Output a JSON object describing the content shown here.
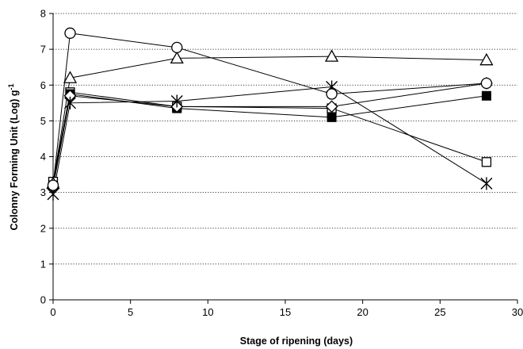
{
  "chart_data": {
    "type": "line",
    "title": "",
    "xlabel": "Stage of ripening  (days)",
    "ylabel_main": "Colonny Forming Unit (Log) g",
    "ylabel_sup": "-1",
    "xlim": [
      0,
      30
    ],
    "ylim": [
      0,
      8
    ],
    "xticks": [
      0,
      5,
      10,
      15,
      20,
      25,
      30
    ],
    "yticks": [
      0,
      1,
      2,
      3,
      4,
      5,
      6,
      7,
      8
    ],
    "grid": "horizontal dotted",
    "legend": "none",
    "series": [
      {
        "marker": "open-circle",
        "points": [
          [
            0,
            3.2
          ],
          [
            1.1,
            7.45
          ],
          [
            8,
            7.05
          ],
          [
            18,
            5.75
          ],
          [
            28,
            6.05
          ]
        ]
      },
      {
        "marker": "open-triangle",
        "points": [
          [
            0,
            3.25
          ],
          [
            1.1,
            6.2
          ],
          [
            8,
            6.75
          ],
          [
            18,
            6.8
          ],
          [
            28,
            6.7
          ]
        ]
      },
      {
        "marker": "asterisk",
        "points": [
          [
            0,
            2.95
          ],
          [
            1.1,
            5.5
          ],
          [
            8,
            5.55
          ],
          [
            18,
            5.95
          ],
          [
            28,
            3.25
          ]
        ]
      },
      {
        "marker": "open-square",
        "points": [
          [
            0,
            3.3
          ],
          [
            1.1,
            5.8
          ],
          [
            8,
            5.4
          ],
          [
            18,
            5.35
          ],
          [
            28,
            3.85
          ]
        ]
      },
      {
        "marker": "filled-square",
        "points": [
          [
            0,
            3.2
          ],
          [
            1.1,
            5.75
          ],
          [
            8,
            5.35
          ],
          [
            18,
            5.1
          ],
          [
            28,
            5.7
          ]
        ]
      },
      {
        "marker": "open-diamond",
        "points": [
          [
            0,
            3.15
          ],
          [
            1.1,
            5.7
          ],
          [
            8,
            5.4
          ],
          [
            18,
            5.4
          ],
          [
            28,
            6.05
          ]
        ]
      }
    ]
  }
}
